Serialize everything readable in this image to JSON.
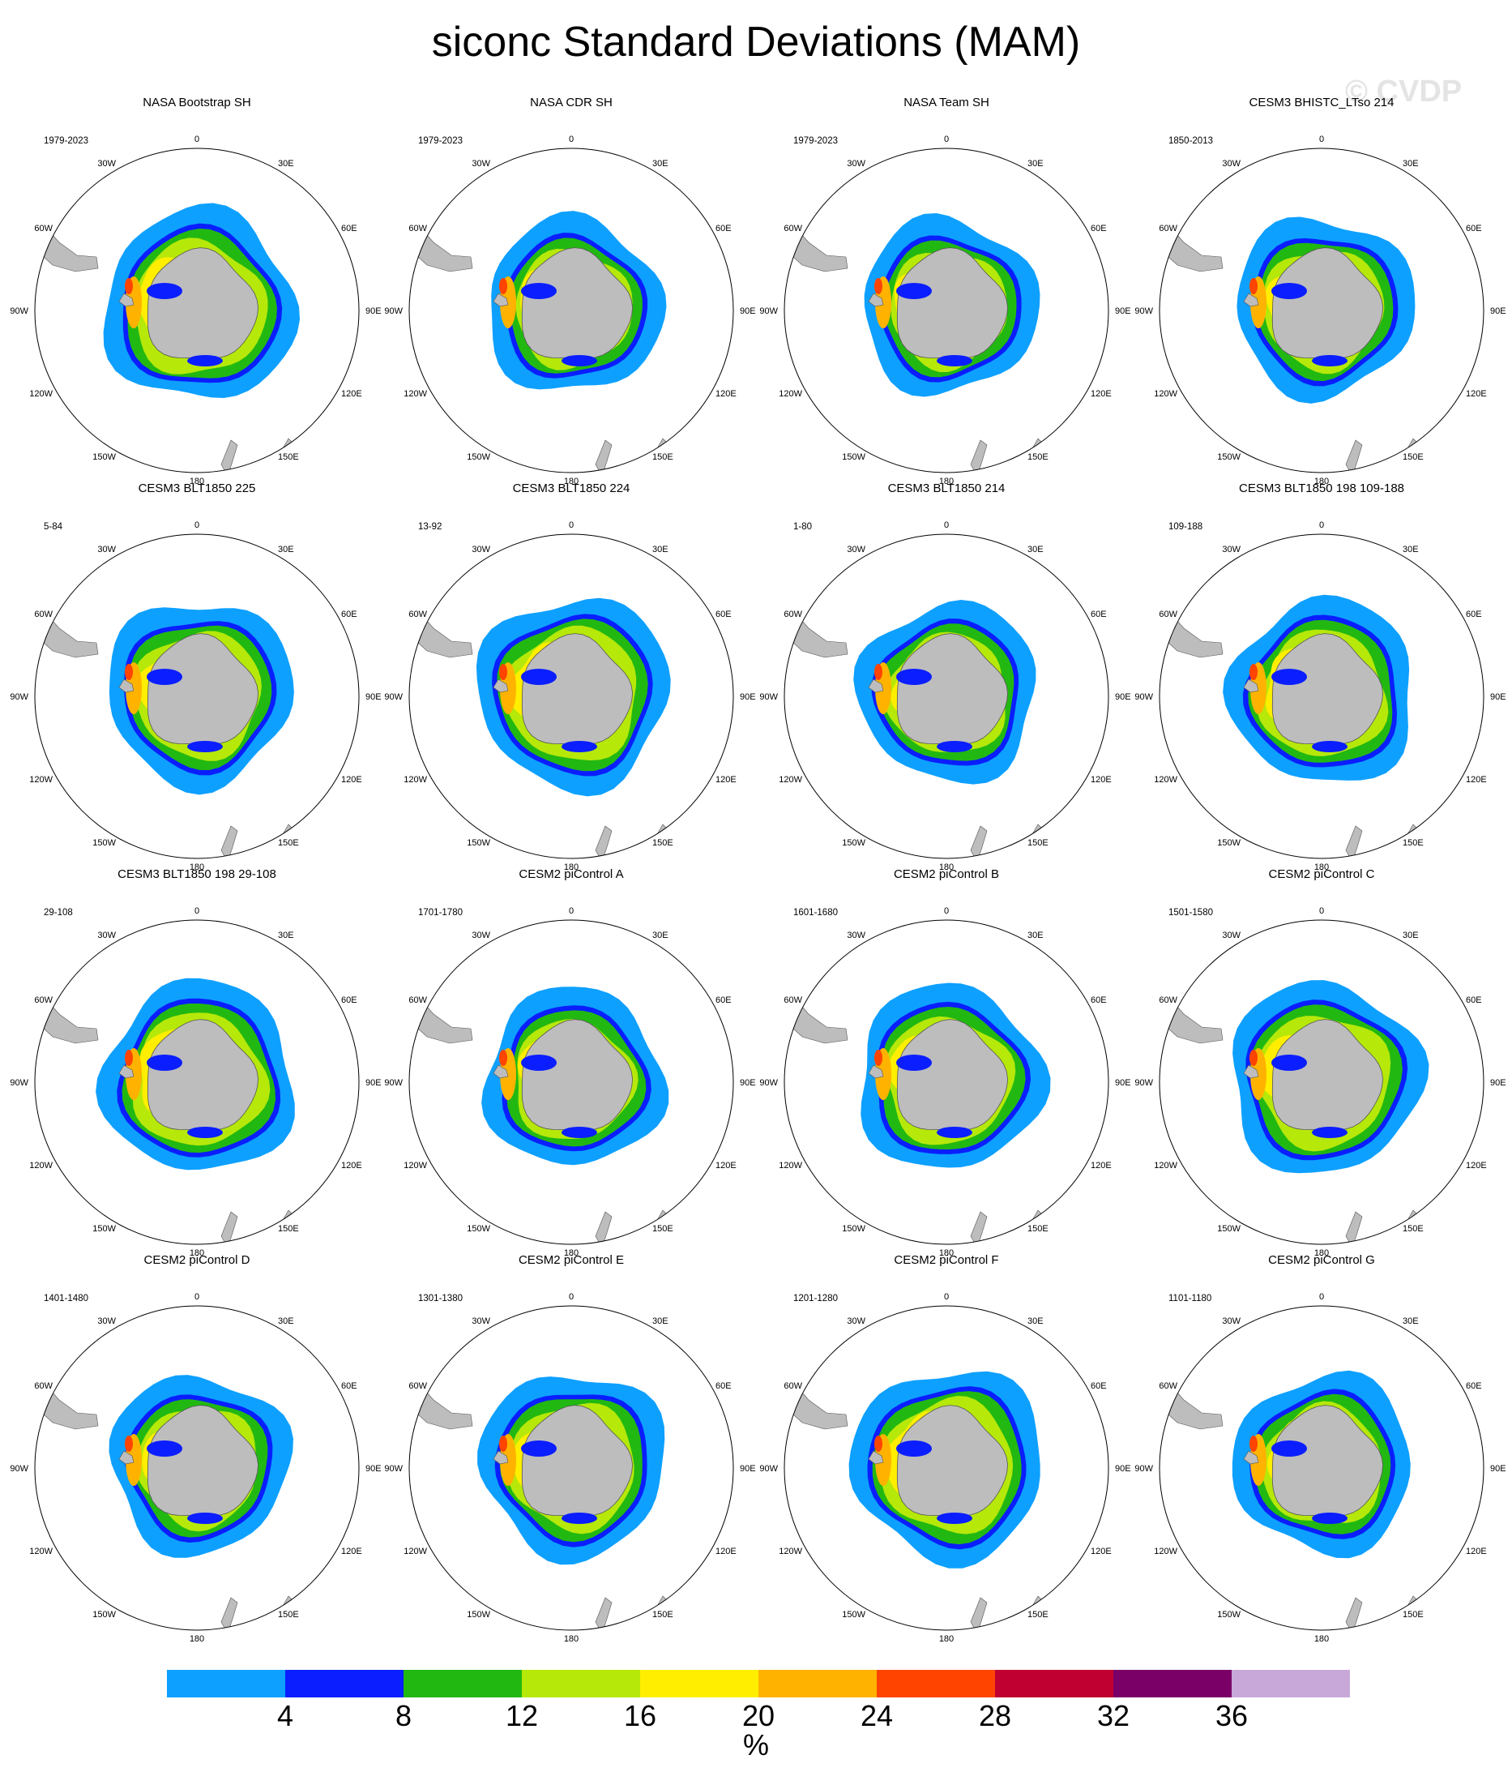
{
  "title": "siconc Standard Deviations (MAM)",
  "watermark": "© CVDP",
  "map_labels": {
    "top": "0",
    "bottom": "180",
    "left": "90W",
    "right": "90E",
    "ul": "30W",
    "ur": "30E",
    "upl": "60W",
    "upr": "60E",
    "lol": "120W",
    "lor": "120E",
    "bl": "150W",
    "br": "150E"
  },
  "colors": {
    "land": "#bdbdbd",
    "levels": [
      "#0ea0ff",
      "#0a1eff",
      "#22b812",
      "#b6e80a",
      "#ffee00",
      "#ffb300",
      "#ff4400",
      "#c00030",
      "#7a0068",
      "#c8a8d8"
    ]
  },
  "panels": [
    {
      "title": "NASA Bootstrap SH",
      "period": "1979-2023"
    },
    {
      "title": "NASA CDR SH",
      "period": "1979-2023"
    },
    {
      "title": "NASA Team SH",
      "period": "1979-2023"
    },
    {
      "title": "CESM3 BHISTC_LTso 214",
      "period": "1850-2013"
    },
    {
      "title": "CESM3 BLT1850 225",
      "period": "5-84"
    },
    {
      "title": "CESM3 BLT1850 224",
      "period": "13-92"
    },
    {
      "title": "CESM3 BLT1850 214",
      "period": "1-80"
    },
    {
      "title": "CESM3 BLT1850 198 109-188",
      "period": "109-188"
    },
    {
      "title": "CESM3 BLT1850 198 29-108",
      "period": "29-108"
    },
    {
      "title": "CESM2 piControl A",
      "period": "1701-1780"
    },
    {
      "title": "CESM2 piControl B",
      "period": "1601-1680"
    },
    {
      "title": "CESM2 piControl C",
      "period": "1501-1580"
    },
    {
      "title": "CESM2 piControl D",
      "period": "1401-1480"
    },
    {
      "title": "CESM2 piControl E",
      "period": "1301-1380"
    },
    {
      "title": "CESM2 piControl F",
      "period": "1201-1280"
    },
    {
      "title": "CESM2 piControl G",
      "period": "1101-1180"
    }
  ],
  "colorbar": {
    "tick_labels": [
      "4",
      "8",
      "12",
      "16",
      "20",
      "24",
      "28",
      "32",
      "36"
    ],
    "units": "%"
  }
}
